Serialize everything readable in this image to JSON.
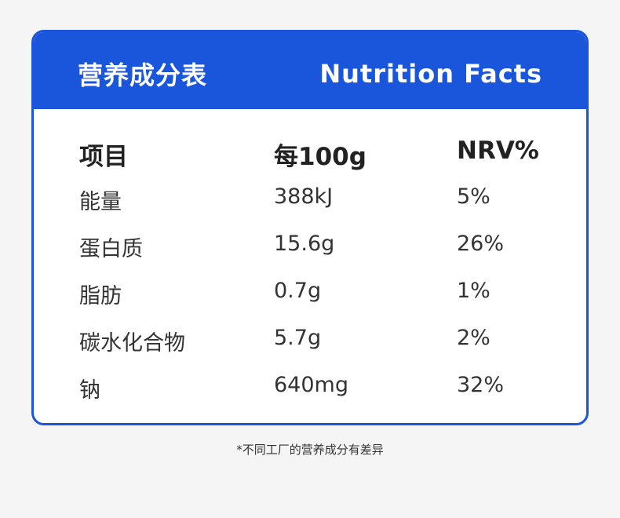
{
  "header": {
    "title_cn": "营养成分表",
    "title_en": "Nutrition Facts"
  },
  "table": {
    "columns": [
      "项目",
      "每100g",
      "NRV%"
    ],
    "rows": [
      {
        "item": "能量",
        "per_100g": "388kJ",
        "nrv": "5%"
      },
      {
        "item": "蛋白质",
        "per_100g": "15.6g",
        "nrv": "26%"
      },
      {
        "item": "脂肪",
        "per_100g": "0.7g",
        "nrv": "1%"
      },
      {
        "item": "碳水化合物",
        "per_100g": "5.7g",
        "nrv": "2%"
      },
      {
        "item": "钠",
        "per_100g": "640mg",
        "nrv": "32%"
      }
    ]
  },
  "footnote": "*不同工厂的营养成分有差异",
  "colors": {
    "accent": "#1a56db",
    "background": "#f5f5f5",
    "card": "#ffffff",
    "text": "#333333"
  }
}
